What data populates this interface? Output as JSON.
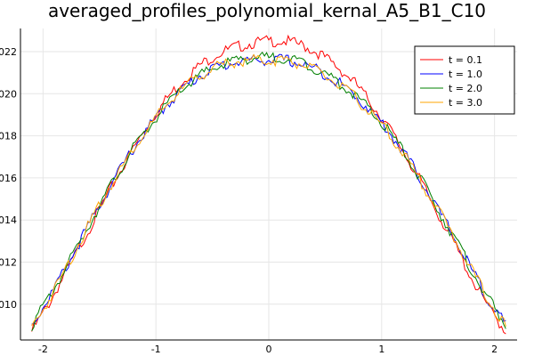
{
  "chart_data": {
    "type": "line",
    "title": "averaged_profiles_polynomial_kernal_A5_B1_C10",
    "xlabel": "",
    "ylabel": "",
    "xlim": [
      -2.2,
      2.2
    ],
    "ylim": [
      1.0083,
      1.0231
    ],
    "grid": true,
    "legend_position": "top-right",
    "x_ticks": [
      -2,
      -1,
      0,
      1,
      2
    ],
    "x_tick_labels": [
      "-2",
      "-1",
      "0",
      "1",
      "2"
    ],
    "y_ticks": [
      1.01,
      1.012,
      1.014,
      1.016,
      1.018,
      1.02,
      1.022
    ],
    "y_tick_labels": [
      "1.010",
      "1.012",
      "1.014",
      "1.016",
      "1.018",
      "1.020",
      "1.022"
    ],
    "x": [
      -2.1,
      -1.95,
      -1.8,
      -1.65,
      -1.5,
      -1.35,
      -1.2,
      -1.05,
      -0.9,
      -0.75,
      -0.6,
      -0.45,
      -0.3,
      -0.15,
      0.0,
      0.15,
      0.3,
      0.45,
      0.6,
      0.75,
      0.9,
      1.05,
      1.2,
      1.35,
      1.5,
      1.65,
      1.8,
      1.95,
      2.1
    ],
    "series": [
      {
        "name": "t = 0.1",
        "color": "#ff0000",
        "values": [
          1.0087,
          1.01,
          1.0115,
          1.013,
          1.0145,
          1.016,
          1.0174,
          1.0187,
          1.0198,
          1.0207,
          1.0214,
          1.0219,
          1.0222,
          1.0224,
          1.0225,
          1.0225,
          1.0223,
          1.0219,
          1.0213,
          1.0206,
          1.0196,
          1.0185,
          1.0172,
          1.0158,
          1.0143,
          1.0128,
          1.0112,
          1.0098,
          1.0087
        ]
      },
      {
        "name": "t = 1.0",
        "color": "#0000ff",
        "values": [
          1.009,
          1.0103,
          1.0117,
          1.0132,
          1.0147,
          1.0161,
          1.0174,
          1.0185,
          1.0195,
          1.0203,
          1.0209,
          1.0213,
          1.0215,
          1.0216,
          1.0216,
          1.0216,
          1.0214,
          1.0211,
          1.0206,
          1.02,
          1.0192,
          1.0183,
          1.0172,
          1.0159,
          1.0145,
          1.0131,
          1.0116,
          1.0102,
          1.009
        ]
      },
      {
        "name": "t = 2.0",
        "color": "#008000",
        "values": [
          1.009,
          1.0103,
          1.0117,
          1.0132,
          1.0147,
          1.0161,
          1.0174,
          1.0185,
          1.0195,
          1.0203,
          1.0209,
          1.0213,
          1.0216,
          1.0217,
          1.0217,
          1.0217,
          1.0215,
          1.0211,
          1.0206,
          1.02,
          1.0192,
          1.0183,
          1.0172,
          1.0159,
          1.0145,
          1.0131,
          1.0116,
          1.0102,
          1.009
        ]
      },
      {
        "name": "t = 3.0",
        "color": "#ffa500",
        "values": [
          1.0089,
          1.0102,
          1.0117,
          1.0132,
          1.0147,
          1.0161,
          1.0174,
          1.0185,
          1.0195,
          1.0203,
          1.0209,
          1.0213,
          1.0215,
          1.0216,
          1.0216,
          1.0216,
          1.0214,
          1.021,
          1.0205,
          1.0199,
          1.0191,
          1.0182,
          1.0171,
          1.0158,
          1.0145,
          1.0131,
          1.0116,
          1.0102,
          1.0089
        ]
      }
    ]
  }
}
